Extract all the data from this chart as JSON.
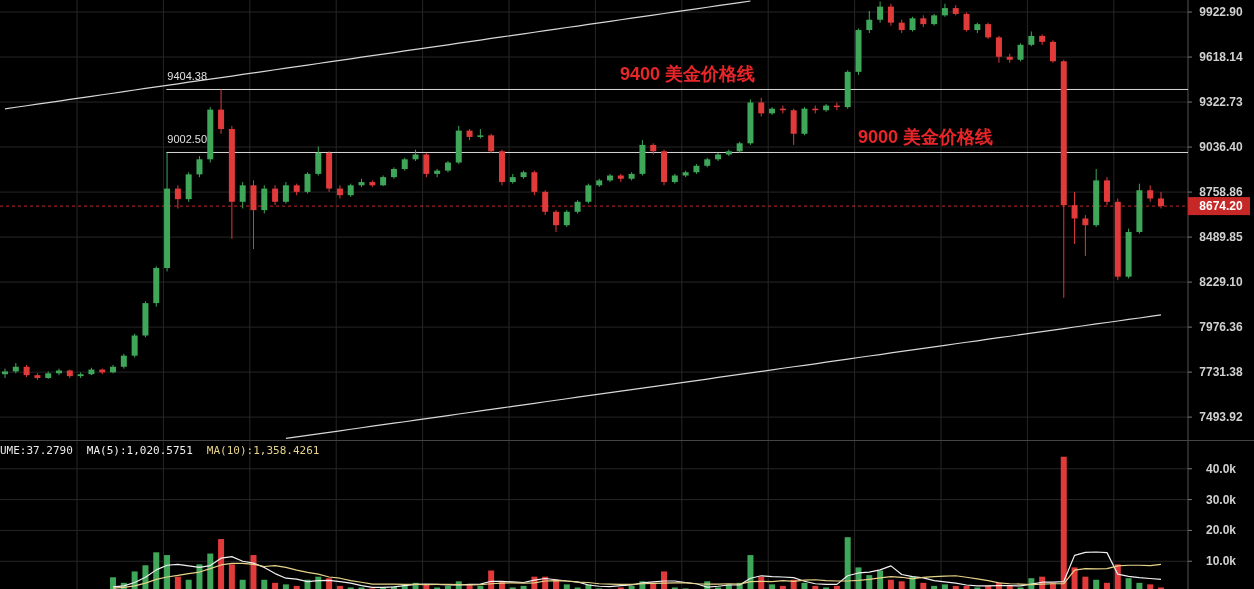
{
  "chart_data": [
    {
      "type": "candlestick",
      "categories": [
        null,
        null,
        null,
        null,
        null,
        null,
        null,
        null,
        null,
        null,
        null,
        null,
        null,
        null,
        null,
        null,
        null,
        null,
        null,
        null,
        null,
        null,
        null,
        null,
        null,
        null,
        null,
        null,
        null,
        null,
        null,
        null,
        null,
        null,
        null,
        null,
        null,
        null,
        null,
        null,
        null,
        null,
        null,
        null,
        null,
        null,
        null,
        null,
        null,
        null,
        null,
        null,
        null,
        null,
        null,
        null,
        null,
        null,
        null,
        null,
        null,
        null,
        null,
        null,
        null,
        null,
        null,
        null,
        null,
        null,
        null,
        null,
        null,
        null,
        null,
        null,
        null,
        null,
        null,
        null,
        null,
        null,
        null,
        null,
        null,
        null,
        null,
        null,
        null,
        null,
        null,
        null,
        null,
        null,
        null,
        null,
        null,
        null,
        null,
        null,
        null,
        null,
        null,
        null,
        null,
        null,
        null,
        null
      ],
      "ohlc": [
        [
          7720,
          7750,
          7700,
          7735
        ],
        [
          7735,
          7780,
          7725,
          7760
        ],
        [
          7760,
          7770,
          7705,
          7715
        ],
        [
          7715,
          7725,
          7690,
          7700
        ],
        [
          7700,
          7735,
          7695,
          7725
        ],
        [
          7725,
          7750,
          7715,
          7740
        ],
        [
          7740,
          7745,
          7700,
          7710
        ],
        [
          7710,
          7730,
          7700,
          7720
        ],
        [
          7720,
          7755,
          7715,
          7745
        ],
        [
          7745,
          7750,
          7720,
          7730
        ],
        [
          7730,
          7770,
          7725,
          7760
        ],
        [
          7760,
          7830,
          7750,
          7820
        ],
        [
          7820,
          7940,
          7810,
          7930
        ],
        [
          7930,
          8120,
          7920,
          8110
        ],
        [
          8110,
          8320,
          8090,
          8310
        ],
        [
          8310,
          9000,
          8290,
          8780
        ],
        [
          8780,
          8800,
          8660,
          8716
        ],
        [
          8716,
          8880,
          8700,
          8867
        ],
        [
          8867,
          8980,
          8850,
          8960
        ],
        [
          8960,
          9290,
          8940,
          9274
        ],
        [
          9274,
          9404.38,
          9120,
          9150
        ],
        [
          9150,
          9170,
          8480,
          8700
        ],
        [
          8700,
          8820,
          8660,
          8800
        ],
        [
          8800,
          8830,
          8420,
          8650
        ],
        [
          8650,
          8800,
          8630,
          8780
        ],
        [
          8780,
          8800,
          8680,
          8700
        ],
        [
          8700,
          8820,
          8690,
          8800
        ],
        [
          8800,
          8810,
          8740,
          8760
        ],
        [
          8760,
          8880,
          8750,
          8870
        ],
        [
          8870,
          9040,
          8860,
          9000
        ],
        [
          9000,
          9010,
          8760,
          8780
        ],
        [
          8780,
          8800,
          8720,
          8740
        ],
        [
          8740,
          8810,
          8730,
          8800
        ],
        [
          8800,
          8840,
          8790,
          8820
        ],
        [
          8820,
          8830,
          8790,
          8800
        ],
        [
          8800,
          8860,
          8795,
          8850
        ],
        [
          8850,
          8910,
          8840,
          8900
        ],
        [
          8900,
          8970,
          8890,
          8960
        ],
        [
          8960,
          9020,
          8950,
          8990
        ],
        [
          8990,
          9000,
          8850,
          8870
        ],
        [
          8870,
          8900,
          8850,
          8890
        ],
        [
          8890,
          8950,
          8880,
          8940
        ],
        [
          8940,
          9170,
          8930,
          9140
        ],
        [
          9140,
          9150,
          9080,
          9100
        ],
        [
          9100,
          9150,
          9090,
          9110
        ],
        [
          9110,
          9120,
          9000,
          9010
        ],
        [
          9010,
          9020,
          8800,
          8820
        ],
        [
          8820,
          8870,
          8810,
          8850
        ],
        [
          8850,
          8890,
          8840,
          8880
        ],
        [
          8880,
          8890,
          8740,
          8760
        ],
        [
          8760,
          8770,
          8620,
          8640
        ],
        [
          8640,
          8650,
          8520,
          8560
        ],
        [
          8560,
          8650,
          8550,
          8640
        ],
        [
          8640,
          8710,
          8630,
          8700
        ],
        [
          8700,
          8810,
          8690,
          8800
        ],
        [
          8800,
          8840,
          8790,
          8830
        ],
        [
          8830,
          8870,
          8820,
          8860
        ],
        [
          8860,
          8870,
          8820,
          8840
        ],
        [
          8840,
          8880,
          8830,
          8870
        ],
        [
          8870,
          9080,
          8860,
          9050
        ],
        [
          9050,
          9060,
          8990,
          9010
        ],
        [
          9010,
          9020,
          8800,
          8820
        ],
        [
          8820,
          8870,
          8810,
          8860
        ],
        [
          8860,
          8890,
          8850,
          8880
        ],
        [
          8880,
          8930,
          8870,
          8920
        ],
        [
          8920,
          8970,
          8910,
          8960
        ],
        [
          8960,
          9000,
          8950,
          8990
        ],
        [
          8990,
          9020,
          8980,
          9010
        ],
        [
          9010,
          9070,
          9000,
          9060
        ],
        [
          9060,
          9340,
          9050,
          9320
        ],
        [
          9320,
          9350,
          9230,
          9250
        ],
        [
          9250,
          9290,
          9240,
          9280
        ],
        [
          9280,
          9300,
          9250,
          9270
        ],
        [
          9270,
          9280,
          9050,
          9120
        ],
        [
          9120,
          9290,
          9110,
          9280
        ],
        [
          9280,
          9300,
          9250,
          9270
        ],
        [
          9270,
          9310,
          9260,
          9300
        ],
        [
          9300,
          9320,
          9270,
          9290
        ],
        [
          9290,
          9530,
          9280,
          9520
        ],
        [
          9520,
          9810,
          9500,
          9800
        ],
        [
          9800,
          9930,
          9780,
          9870
        ],
        [
          9870,
          9995,
          9850,
          9960
        ],
        [
          9960,
          9980,
          9830,
          9850
        ],
        [
          9850,
          9870,
          9780,
          9800
        ],
        [
          9800,
          9890,
          9790,
          9880
        ],
        [
          9880,
          9900,
          9820,
          9840
        ],
        [
          9840,
          9910,
          9830,
          9900
        ],
        [
          9900,
          9980,
          9890,
          9950
        ],
        [
          9950,
          9970,
          9900,
          9910
        ],
        [
          9910,
          9920,
          9790,
          9800
        ],
        [
          9800,
          9850,
          9780,
          9840
        ],
        [
          9840,
          9850,
          9740,
          9750
        ],
        [
          9750,
          9760,
          9580,
          9620
        ],
        [
          9620,
          9640,
          9580,
          9600
        ],
        [
          9600,
          9710,
          9590,
          9700
        ],
        [
          9700,
          9790,
          9690,
          9760
        ],
        [
          9760,
          9770,
          9700,
          9720
        ],
        [
          9720,
          9730,
          9580,
          9590
        ],
        [
          9590,
          9600,
          8140,
          8680
        ],
        [
          8680,
          8760,
          8450,
          8600
        ],
        [
          8600,
          8620,
          8380,
          8560
        ],
        [
          8560,
          8900,
          8550,
          8830
        ],
        [
          8830,
          8850,
          8680,
          8700
        ],
        [
          8700,
          8720,
          8240,
          8260
        ],
        [
          8260,
          8540,
          8250,
          8520
        ],
        [
          8520,
          8810,
          8510,
          8770
        ],
        [
          8770,
          8800,
          8700,
          8720
        ],
        [
          8720,
          8760,
          8660,
          8674.2
        ]
      ],
      "colors": [
        "#3ea75a",
        "#3ea75a",
        "#e03a3a",
        "#e03a3a",
        "#3ea75a",
        "#3ea75a",
        "#e03a3a",
        "#3ea75a",
        "#3ea75a",
        "#e03a3a",
        "#3ea75a",
        "#3ea75a",
        "#3ea75a",
        "#3ea75a",
        "#3ea75a",
        "#3ea75a",
        "#e03a3a",
        "#3ea75a",
        "#3ea75a",
        "#3ea75a",
        "#e03a3a",
        "#e03a3a",
        "#3ea75a",
        "#e03a3a",
        "#3ea75a",
        "#e03a3a",
        "#3ea75a",
        "#e03a3a",
        "#3ea75a",
        "#3ea75a",
        "#e03a3a",
        "#e03a3a",
        "#3ea75a",
        "#3ea75a",
        "#e03a3a",
        "#3ea75a",
        "#3ea75a",
        "#3ea75a",
        "#3ea75a",
        "#e03a3a",
        "#3ea75a",
        "#3ea75a",
        "#3ea75a",
        "#e03a3a",
        "#3ea75a",
        "#e03a3a",
        "#e03a3a",
        "#3ea75a",
        "#3ea75a",
        "#e03a3a",
        "#e03a3a",
        "#e03a3a",
        "#3ea75a",
        "#3ea75a",
        "#3ea75a",
        "#3ea75a",
        "#3ea75a",
        "#e03a3a",
        "#3ea75a",
        "#3ea75a",
        "#e03a3a",
        "#e03a3a",
        "#3ea75a",
        "#3ea75a",
        "#3ea75a",
        "#3ea75a",
        "#3ea75a",
        "#3ea75a",
        "#3ea75a",
        "#3ea75a",
        "#e03a3a",
        "#3ea75a",
        "#e03a3a",
        "#e03a3a",
        "#3ea75a",
        "#e03a3a",
        "#3ea75a",
        "#e03a3a",
        "#3ea75a",
        "#3ea75a",
        "#3ea75a",
        "#3ea75a",
        "#e03a3a",
        "#e03a3a",
        "#3ea75a",
        "#e03a3a",
        "#3ea75a",
        "#3ea75a",
        "#e03a3a",
        "#e03a3a",
        "#3ea75a",
        "#e03a3a",
        "#e03a3a",
        "#e03a3a",
        "#3ea75a",
        "#3ea75a",
        "#e03a3a",
        "#e03a3a",
        "#e03a3a",
        "#e03a3a",
        "#e03a3a",
        "#3ea75a",
        "#e03a3a",
        "#e03a3a",
        "#3ea75a",
        "#3ea75a",
        "#e03a3a",
        "#e03a3a"
      ],
      "series": [
        {
          "type": "line",
          "color": "#d8d8d8",
          "values": [
            9279,
            9289,
            9299,
            9309,
            9319,
            9329,
            9340,
            9350,
            9360,
            9370,
            9380,
            9390,
            9401,
            9411,
            9421,
            9431,
            9441,
            9452,
            9462,
            9472,
            9482,
            9492,
            9503,
            9513,
            9523,
            9534,
            9544,
            9554,
            9565,
            9575,
            9586,
            9596,
            9606,
            9617,
            9627,
            9638,
            9648,
            9659,
            9669,
            9679,
            9690,
            9700,
            9711,
            9721,
            9732,
            9743,
            9753,
            9764,
            9774,
            9785,
            9796,
            9806,
            9817,
            9827,
            9838,
            9849,
            9859,
            9870,
            9881,
            9891,
            9902,
            9913,
            9924,
            9934,
            9945,
            9956,
            9967,
            9977,
            9988,
            9999,
            null,
            null,
            null,
            null,
            null,
            null,
            null,
            null,
            null,
            null,
            null,
            null,
            null,
            null,
            null,
            null,
            null,
            null,
            null,
            null,
            null,
            null,
            null,
            null,
            null,
            null,
            null,
            null,
            null,
            null,
            null,
            null,
            null,
            null,
            null,
            null,
            null,
            null
          ]
        },
        {
          "type": "line",
          "color": "#d8d8d8",
          "values": [
            null,
            null,
            null,
            null,
            null,
            null,
            null,
            null,
            null,
            null,
            null,
            null,
            null,
            null,
            null,
            null,
            null,
            null,
            null,
            null,
            null,
            null,
            null,
            null,
            null,
            null,
            7384,
            7392,
            7400,
            7407,
            7415,
            7423,
            7431,
            7439,
            7447,
            7455,
            7463,
            7470,
            7478,
            7486,
            7494,
            7502,
            7510,
            7518,
            7526,
            7534,
            7542,
            7550,
            7558,
            7566,
            7574,
            7582,
            7590,
            7598,
            7606,
            7614,
            7622,
            7630,
            7638,
            7646,
            7654,
            7662,
            7670,
            7678,
            7686,
            7694,
            7703,
            7711,
            7719,
            7727,
            7735,
            7743,
            7752,
            7760,
            7768,
            7776,
            7785,
            7793,
            7801,
            7810,
            7818,
            7826,
            7835,
            7843,
            7851,
            7860,
            7868,
            7876,
            7885,
            7893,
            7901,
            7910,
            7918,
            7926,
            7935,
            7943,
            7951,
            7960,
            7968,
            7977,
            7985,
            7994,
            8002,
            8010,
            8019,
            8027,
            8036,
            8044
          ]
        }
      ],
      "ylim": [
        7376,
        10006
      ],
      "log": true,
      "yticks": [
        {
          "value": 9922.9,
          "label": "9922.90"
        },
        9618.14,
        9322.73,
        {
          "value": 9036.4,
          "label": "9036.40"
        },
        8758.86,
        8489.85,
        {
          "value": 8229.1,
          "label": "8229.10"
        },
        7976.36,
        7731.38,
        7493.92
      ],
      "grid": true,
      "ref_lines": [
        {
          "axis": "y",
          "value": 9404.38,
          "label": "9404.38",
          "color": "#d8d8d8",
          "line_style": "solid"
        },
        {
          "axis": "y",
          "value": 9002.5,
          "label": "9002.50",
          "color": "#d8d8d8",
          "line_style": "solid"
        },
        {
          "axis": "y",
          "value": 8674.2,
          "label": "8674.20",
          "color": "#c62828",
          "line_style": "dashed"
        }
      ],
      "annotations": [
        {
          "text": "9400 美金价格线",
          "y": 9404.38
        },
        {
          "text": "9000 美金价格线",
          "y": 9002.5
        }
      ]
    },
    {
      "type": "bar",
      "categories": [
        null,
        null,
        null,
        null,
        null,
        null,
        null,
        null,
        null,
        null,
        null,
        null,
        null,
        null,
        null,
        null,
        null,
        null,
        null,
        null,
        null,
        null,
        null,
        null,
        null,
        null,
        null,
        null,
        null,
        null,
        null,
        null,
        null,
        null,
        null,
        null,
        null,
        null,
        null,
        null,
        null,
        null,
        null,
        null,
        null,
        null,
        null,
        null,
        null,
        null,
        null,
        null,
        null,
        null,
        null,
        null,
        null,
        null,
        null,
        null,
        null,
        null,
        null,
        null,
        null,
        null,
        null,
        null,
        null,
        null,
        null,
        null,
        null,
        null,
        null,
        null,
        null,
        null,
        null,
        null,
        null,
        null,
        null,
        null,
        null,
        null,
        null,
        null,
        null,
        null,
        null,
        null,
        null,
        null,
        null,
        null,
        null,
        null,
        null,
        null,
        null,
        null,
        null,
        null,
        null,
        null,
        null,
        null
      ],
      "series": [
        {
          "values": [
            null,
            null,
            null,
            null,
            null,
            null,
            null,
            null,
            null,
            null,
            4800,
            3000,
            6700,
            8700,
            12900,
            12000,
            5000,
            4000,
            9000,
            12500,
            17200,
            9000,
            4000,
            12000,
            4000,
            3000,
            2500,
            2000,
            4000,
            5000,
            4500,
            2000,
            1500,
            1500,
            1200,
            1500,
            1800,
            2500,
            3000,
            2500,
            1500,
            2000,
            3500,
            2500,
            2000,
            7000,
            3500,
            1500,
            2000,
            5000,
            5000,
            4000,
            2500,
            1500,
            2500,
            1200,
            null,
            1500,
            2000,
            3500,
            3000,
            6700,
            1500,
            1200,
            null,
            3500,
            1500,
            2500,
            3000,
            12000,
            5000,
            2500,
            2000,
            4000,
            3000,
            2000,
            1500,
            2000,
            17800,
            8000,
            5500,
            7000,
            4000,
            3500,
            5000,
            3000,
            2000,
            2500,
            2000,
            2000,
            1500,
            2000,
            3000,
            2000,
            1500,
            4500,
            5000,
            3000,
            43900,
            8000,
            5000,
            4000,
            3000,
            9000,
            4500,
            3000,
            2500,
            1500
          ],
          "colors": [
            null,
            null,
            null,
            null,
            null,
            null,
            null,
            null,
            null,
            null,
            "#3ea75a",
            "#3ea75a",
            "#3ea75a",
            "#3ea75a",
            "#3ea75a",
            "#3ea75a",
            "#e03a3a",
            "#3ea75a",
            "#3ea75a",
            "#3ea75a",
            "#e03a3a",
            "#e03a3a",
            "#3ea75a",
            "#e03a3a",
            "#3ea75a",
            "#e03a3a",
            "#3ea75a",
            "#e03a3a",
            "#3ea75a",
            "#3ea75a",
            "#e03a3a",
            "#e03a3a",
            "#3ea75a",
            "#3ea75a",
            "#e03a3a",
            "#3ea75a",
            "#3ea75a",
            "#3ea75a",
            "#3ea75a",
            "#e03a3a",
            "#3ea75a",
            "#3ea75a",
            "#3ea75a",
            "#e03a3a",
            "#3ea75a",
            "#e03a3a",
            "#e03a3a",
            "#3ea75a",
            "#3ea75a",
            "#e03a3a",
            "#e03a3a",
            "#e03a3a",
            "#3ea75a",
            "#3ea75a",
            "#3ea75a",
            "#3ea75a",
            null,
            "#e03a3a",
            "#3ea75a",
            "#3ea75a",
            "#e03a3a",
            "#e03a3a",
            "#3ea75a",
            "#3ea75a",
            null,
            "#3ea75a",
            "#3ea75a",
            "#3ea75a",
            "#3ea75a",
            "#3ea75a",
            "#e03a3a",
            "#3ea75a",
            "#e03a3a",
            "#e03a3a",
            "#3ea75a",
            "#e03a3a",
            "#3ea75a",
            "#e03a3a",
            "#3ea75a",
            "#3ea75a",
            "#3ea75a",
            "#3ea75a",
            "#e03a3a",
            "#e03a3a",
            "#3ea75a",
            "#e03a3a",
            "#3ea75a",
            "#3ea75a",
            "#e03a3a",
            "#e03a3a",
            "#3ea75a",
            "#e03a3a",
            "#e03a3a",
            "#e03a3a",
            "#3ea75a",
            "#3ea75a",
            "#e03a3a",
            "#e03a3a",
            "#e03a3a",
            "#e03a3a",
            "#e03a3a",
            "#3ea75a",
            "#e03a3a",
            "#e03a3a",
            "#3ea75a",
            "#3ea75a",
            "#e03a3a",
            "#e03a3a"
          ]
        },
        {
          "type": "line",
          "name": "MA(5):1,020.5751",
          "color": "#f0f0f0",
          "values": [
            null,
            null,
            null,
            null,
            null,
            null,
            null,
            null,
            null,
            null,
            1700,
            2000,
            3100,
            4800,
            7200,
            8700,
            9000,
            8500,
            8000,
            8600,
            11000,
            11500,
            10000,
            9400,
            8000,
            6000,
            4500,
            4200,
            3400,
            3700,
            3800,
            3400,
            2900,
            2100,
            1500,
            1500,
            1700,
            2100,
            2500,
            2600,
            2500,
            2300,
            2300,
            2500,
            2600,
            3500,
            3500,
            3300,
            3100,
            3900,
            4400,
            4000,
            3600,
            3300,
            2300,
            1900,
            1800,
            2100,
            2300,
            3000,
            3300,
            3600,
            3600,
            3100,
            2700,
            1600,
            1900,
            2300,
            2300,
            4500,
            5300,
            5000,
            4900,
            4700,
            3500,
            2700,
            2500,
            2500,
            5300,
            6200,
            6500,
            7200,
            8500,
            5700,
            5000,
            4600,
            3700,
            3300,
            2900,
            2300,
            2000,
            2000,
            2100,
            2100,
            2000,
            2600,
            3200,
            3200,
            3400,
            11900,
            12900,
            13000,
            12800,
            5800,
            5100,
            4700,
            4400,
            4100
          ]
        },
        {
          "type": "line",
          "name": "MA(10):1,358.4261",
          "color": "#e6d38a",
          "values": [
            null,
            null,
            null,
            null,
            null,
            null,
            null,
            null,
            null,
            null,
            1300,
            1500,
            2000,
            2900,
            4100,
            4900,
            5400,
            6000,
            6500,
            7600,
            8800,
            9300,
            9300,
            9000,
            8300,
            8600,
            8000,
            7100,
            6400,
            5800,
            4900,
            4500,
            3700,
            3200,
            2600,
            2600,
            2600,
            2500,
            2500,
            2400,
            2500,
            2500,
            2400,
            2300,
            2400,
            2700,
            2900,
            3000,
            2900,
            3000,
            3600,
            3700,
            3600,
            3200,
            3100,
            2700,
            2600,
            2500,
            2500,
            2700,
            2800,
            2900,
            3000,
            3000,
            2700,
            2600,
            2600,
            2700,
            2600,
            3400,
            3500,
            3400,
            3700,
            3500,
            3900,
            4000,
            3700,
            3600,
            3600,
            3800,
            4100,
            4600,
            5000,
            4800,
            4300,
            4800,
            5000,
            5200,
            5300,
            4800,
            4300,
            3700,
            3000,
            2700,
            2600,
            2400,
            2600,
            2700,
            2700,
            7100,
            7600,
            7500,
            7600,
            8500,
            8700,
            8700,
            8600,
            9000
          ]
        }
      ],
      "ylim": [
        1000,
        49000
      ],
      "yticks": [
        {
          "value": 10000,
          "label": "10.0k"
        },
        {
          "value": 20000,
          "label": "20.0k"
        },
        {
          "value": 30000,
          "label": "30.0k"
        },
        {
          "value": 40000,
          "label": "40.0k"
        }
      ],
      "grid": true,
      "legend": "top left",
      "annotations": [
        "UME:37.2790"
      ]
    }
  ]
}
